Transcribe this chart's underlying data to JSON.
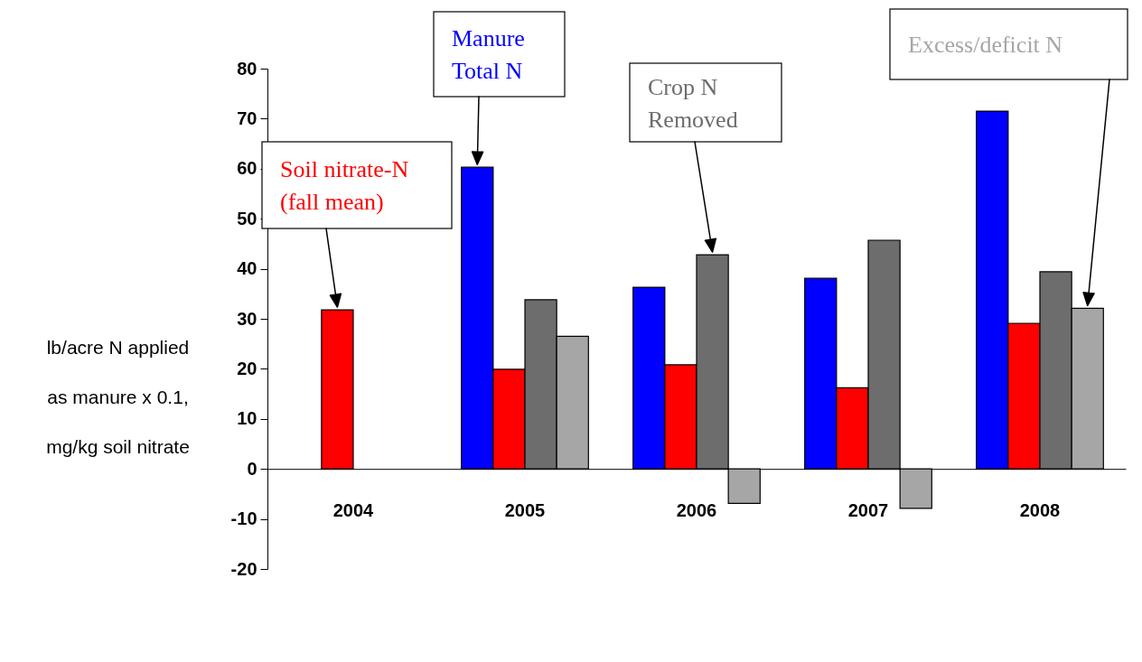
{
  "chart_data": {
    "type": "bar",
    "categories": [
      "2004",
      "2005",
      "2006",
      "2007",
      "2008"
    ],
    "ylabel": "lb/acre N applied as manure x 0.1, mg/kg soil nitrate",
    "ylim": [
      -20,
      80
    ],
    "yticks": [
      -20,
      -10,
      0,
      10,
      20,
      30,
      40,
      50,
      60,
      70,
      80
    ],
    "grid": false,
    "legend": false,
    "series": [
      {
        "name": "Manure Total N",
        "color": "#0000ff",
        "values": [
          null,
          60.3,
          36.3,
          38.1,
          71.5
        ]
      },
      {
        "name": "Soil nitrate-N (fall mean)",
        "color": "#ff0000",
        "values": [
          31.8,
          19.9,
          20.8,
          16.2,
          29.1
        ]
      },
      {
        "name": "Crop N Removed",
        "color": "#6d6d6d",
        "values": [
          null,
          33.8,
          42.8,
          45.7,
          39.4
        ]
      },
      {
        "name": "Excess/deficit N",
        "color": "#a6a6a6",
        "values": [
          null,
          26.5,
          -6.9,
          -7.9,
          32.1
        ]
      }
    ]
  }
}
